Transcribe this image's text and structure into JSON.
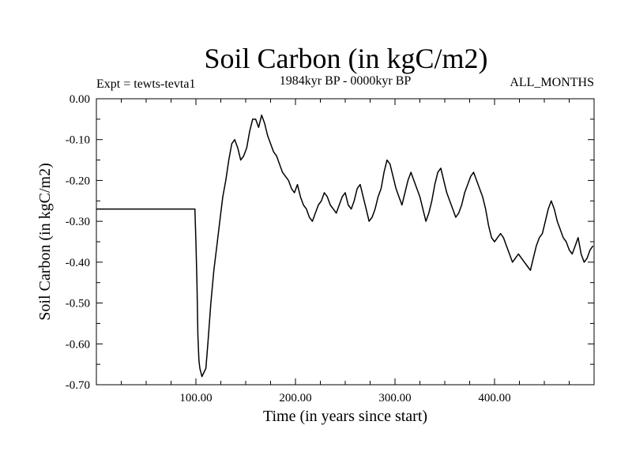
{
  "chart_data": {
    "type": "line",
    "title": "Soil Carbon (in kgC/m2)",
    "subtitle": "1984kyr BP - 0000kyr BP",
    "left_label": "Expt = tewts-tevta1",
    "right_label": "ALL_MONTHS",
    "xlabel": "Time (in years since start)",
    "ylabel": "Soil Carbon (in kgC/m2)",
    "xlim": [
      0,
      500
    ],
    "ylim": [
      -0.7,
      0.0
    ],
    "xticks": [
      100,
      200,
      300,
      400
    ],
    "xtick_labels": [
      "100.00",
      "200.00",
      "300.00",
      "400.00"
    ],
    "yticks": [
      0.0,
      -0.1,
      -0.2,
      -0.3,
      -0.4,
      -0.5,
      -0.6,
      -0.7
    ],
    "ytick_labels": [
      "0.00",
      "-0.10",
      "-0.20",
      "-0.30",
      "-0.40",
      "-0.50",
      "-0.60",
      "-0.70"
    ],
    "grid": false,
    "series": [
      {
        "name": "Soil Carbon",
        "color": "#000000",
        "x": [
          0,
          99,
          100,
          101,
          102,
          103,
          104,
          105,
          106,
          107,
          108,
          110,
          112,
          115,
          118,
          121,
          124,
          127,
          130,
          133,
          136,
          139,
          142,
          145,
          148,
          151,
          154,
          157,
          160,
          163,
          166,
          169,
          172,
          175,
          178,
          181,
          184,
          187,
          190,
          193,
          196,
          199,
          202,
          205,
          208,
          211,
          214,
          217,
          220,
          223,
          226,
          229,
          232,
          235,
          238,
          241,
          244,
          247,
          250,
          253,
          256,
          259,
          262,
          265,
          268,
          271,
          274,
          277,
          280,
          283,
          286,
          289,
          292,
          295,
          298,
          301,
          304,
          307,
          310,
          313,
          316,
          319,
          322,
          325,
          328,
          331,
          334,
          337,
          340,
          343,
          346,
          349,
          352,
          355,
          358,
          361,
          364,
          367,
          370,
          373,
          376,
          379,
          382,
          385,
          388,
          391,
          394,
          397,
          400,
          403,
          406,
          409,
          412,
          415,
          418,
          421,
          424,
          427,
          430,
          433,
          436,
          439,
          442,
          445,
          448,
          451,
          454,
          457,
          460,
          463,
          466,
          469,
          472,
          475,
          478,
          481,
          484,
          487,
          490,
          493,
          496,
          499
        ],
        "values": [
          -0.27,
          -0.27,
          -0.35,
          -0.45,
          -0.58,
          -0.64,
          -0.66,
          -0.67,
          -0.68,
          -0.675,
          -0.67,
          -0.66,
          -0.6,
          -0.5,
          -0.42,
          -0.36,
          -0.3,
          -0.24,
          -0.2,
          -0.15,
          -0.11,
          -0.1,
          -0.12,
          -0.15,
          -0.14,
          -0.12,
          -0.08,
          -0.05,
          -0.05,
          -0.07,
          -0.04,
          -0.06,
          -0.09,
          -0.11,
          -0.13,
          -0.14,
          -0.16,
          -0.18,
          -0.19,
          -0.2,
          -0.22,
          -0.23,
          -0.21,
          -0.24,
          -0.26,
          -0.27,
          -0.29,
          -0.3,
          -0.28,
          -0.26,
          -0.25,
          -0.23,
          -0.24,
          -0.26,
          -0.27,
          -0.28,
          -0.26,
          -0.24,
          -0.23,
          -0.26,
          -0.27,
          -0.25,
          -0.22,
          -0.21,
          -0.24,
          -0.27,
          -0.3,
          -0.29,
          -0.27,
          -0.24,
          -0.22,
          -0.18,
          -0.15,
          -0.16,
          -0.19,
          -0.22,
          -0.24,
          -0.26,
          -0.23,
          -0.2,
          -0.18,
          -0.2,
          -0.22,
          -0.24,
          -0.27,
          -0.3,
          -0.28,
          -0.25,
          -0.21,
          -0.18,
          -0.17,
          -0.2,
          -0.23,
          -0.25,
          -0.27,
          -0.29,
          -0.28,
          -0.26,
          -0.23,
          -0.21,
          -0.19,
          -0.18,
          -0.2,
          -0.22,
          -0.24,
          -0.27,
          -0.31,
          -0.34,
          -0.35,
          -0.34,
          -0.33,
          -0.34,
          -0.36,
          -0.38,
          -0.4,
          -0.39,
          -0.38,
          -0.39,
          -0.4,
          -0.41,
          -0.42,
          -0.39,
          -0.36,
          -0.34,
          -0.33,
          -0.3,
          -0.27,
          -0.25,
          -0.27,
          -0.3,
          -0.32,
          -0.34,
          -0.35,
          -0.37,
          -0.38,
          -0.36,
          -0.34,
          -0.38,
          -0.4,
          -0.39,
          -0.37,
          -0.36
        ]
      }
    ]
  }
}
